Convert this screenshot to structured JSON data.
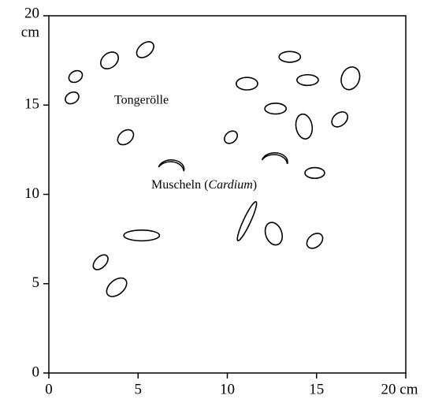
{
  "chart_data": {
    "type": "map",
    "annotations": {
      "pebbles": "Tongerölle",
      "shells": [
        "Muscheln (",
        "Cardium",
        ")"
      ]
    },
    "xlim": [
      0,
      20
    ],
    "ylim": [
      0,
      20
    ],
    "xticks": [
      0,
      5,
      10,
      15,
      {
        "value": 20,
        "label": "20 cm"
      }
    ],
    "yticks": [
      0,
      5,
      10,
      15,
      20
    ],
    "y_unit": "cm",
    "pebbles": [
      {
        "x": 1.5,
        "y": 16.6,
        "length": 0.8,
        "width": 0.6,
        "angle": -30
      },
      {
        "x": 1.3,
        "y": 15.4,
        "length": 0.8,
        "width": 0.6,
        "angle": -30
      },
      {
        "x": 3.4,
        "y": 17.5,
        "length": 1.1,
        "width": 0.8,
        "angle": -40
      },
      {
        "x": 5.4,
        "y": 18.1,
        "length": 1.1,
        "width": 0.7,
        "angle": -40
      },
      {
        "x": 4.3,
        "y": 13.2,
        "length": 1.0,
        "width": 0.7,
        "angle": -40
      },
      {
        "x": 2.9,
        "y": 6.2,
        "length": 1.0,
        "width": 0.6,
        "angle": -45
      },
      {
        "x": 3.8,
        "y": 4.8,
        "length": 1.3,
        "width": 0.8,
        "angle": -40
      },
      {
        "x": 5.2,
        "y": 7.7,
        "length": 2.0,
        "width": 0.6,
        "angle": 0
      },
      {
        "x": 11.1,
        "y": 16.2,
        "length": 1.2,
        "width": 0.7,
        "angle": 0
      },
      {
        "x": 13.5,
        "y": 17.7,
        "length": 1.2,
        "width": 0.6,
        "angle": 0
      },
      {
        "x": 14.5,
        "y": 16.4,
        "length": 1.2,
        "width": 0.6,
        "angle": 0
      },
      {
        "x": 16.9,
        "y": 16.5,
        "length": 1.3,
        "width": 1.0,
        "angle": -70
      },
      {
        "x": 12.7,
        "y": 14.8,
        "length": 1.2,
        "width": 0.6,
        "angle": 0
      },
      {
        "x": 14.3,
        "y": 13.8,
        "length": 1.4,
        "width": 0.9,
        "angle": 80
      },
      {
        "x": 16.3,
        "y": 14.2,
        "length": 1.0,
        "width": 0.7,
        "angle": -40
      },
      {
        "x": 10.2,
        "y": 13.2,
        "length": 0.8,
        "width": 0.6,
        "angle": -40
      },
      {
        "x": 14.9,
        "y": 11.2,
        "length": 1.1,
        "width": 0.6,
        "angle": 0
      },
      {
        "x": 11.1,
        "y": 8.5,
        "length": 2.4,
        "width": 0.4,
        "angle": -65
      },
      {
        "x": 12.6,
        "y": 7.8,
        "length": 1.3,
        "width": 0.9,
        "angle": 70
      },
      {
        "x": 14.9,
        "y": 7.4,
        "length": 1.0,
        "width": 0.7,
        "angle": -40
      }
    ],
    "shells": [
      {
        "x": 6.9,
        "y": 11.7
      },
      {
        "x": 12.7,
        "y": 12.1
      }
    ]
  }
}
